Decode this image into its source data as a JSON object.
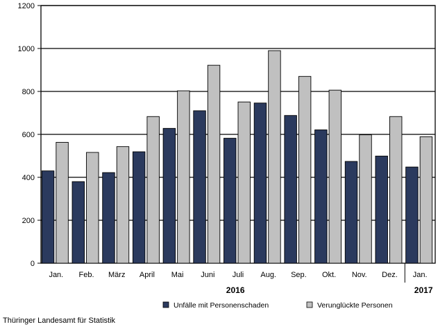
{
  "chart_data": {
    "type": "bar",
    "categories": [
      "Jan.",
      "Feb.",
      "März",
      "April",
      "Mai",
      "Juni",
      "Juli",
      "Aug.",
      "Sep.",
      "Okt.",
      "Nov.",
      "Dez.",
      "Jan."
    ],
    "series": [
      {
        "name": "Unfälle mit Personenschaden",
        "values": [
          430,
          380,
          422,
          519,
          628,
          710,
          582,
          746,
          688,
          621,
          474,
          499,
          448
        ],
        "color": "#2b3a5e"
      },
      {
        "name": "Verunglückte Personen",
        "values": [
          563,
          516,
          543,
          683,
          803,
          922,
          751,
          990,
          870,
          806,
          598,
          683,
          589
        ],
        "color": "#c0c0c0"
      }
    ],
    "ylim": [
      0,
      1200
    ],
    "yticks": [
      0,
      200,
      400,
      600,
      800,
      1000,
      1200
    ],
    "year_labels": [
      {
        "label": "2016",
        "categories": [
          0,
          11
        ]
      },
      {
        "label": "2017",
        "categories": [
          12,
          12
        ]
      }
    ],
    "grid": true,
    "legend_position": "bottom"
  },
  "source": "Thüringer Landesamt für Statistik"
}
